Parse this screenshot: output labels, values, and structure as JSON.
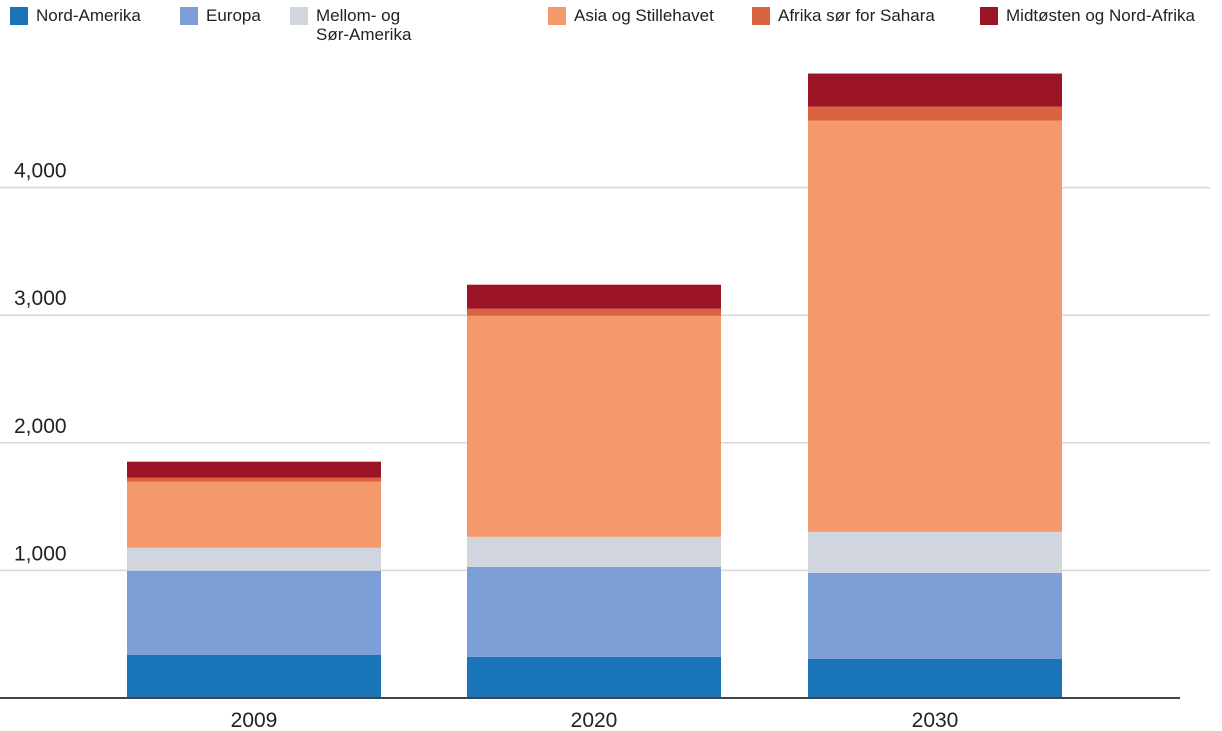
{
  "chart_data": {
    "type": "stacked_bar",
    "categories": [
      "2009",
      "2020",
      "2030"
    ],
    "series": [
      {
        "name": "Nord-Amerika",
        "color": "#1a74b8",
        "values": [
          337,
          322,
          306
        ]
      },
      {
        "name": "Europa",
        "color": "#7b9fd6",
        "values": [
          660,
          705,
          674
        ]
      },
      {
        "name": "Mellom- og Sør-Amerika",
        "color": "#d0d5de",
        "values": [
          180,
          236,
          322
        ]
      },
      {
        "name": "Asia og Stillehavet",
        "color": "#f4996b",
        "values": [
          518,
          1733,
          3223
        ]
      },
      {
        "name": "Afrika sør for Sahara",
        "color": "#d9623f",
        "values": [
          31,
          55,
          110
        ]
      },
      {
        "name": "Midtøsten og Nord-Afrika",
        "color": "#9b1426",
        "values": [
          126,
          188,
          259
        ]
      }
    ],
    "ylim": [
      0,
      5000
    ],
    "yticks": [
      {
        "value": 1000,
        "label": "1,000"
      },
      {
        "value": 2000,
        "label": "2,000"
      },
      {
        "value": 3000,
        "label": "3,000"
      },
      {
        "value": 4000,
        "label": "4,000"
      }
    ],
    "grid": true
  }
}
